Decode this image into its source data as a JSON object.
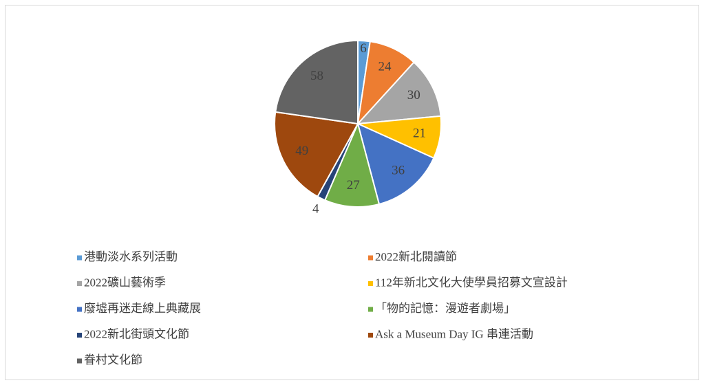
{
  "chart_data": {
    "type": "pie",
    "categories": [
      "港動淡水系列活動",
      "2022新北閱讀節",
      "2022礦山藝術季",
      "112年新北文化大使學員招募文宣設計",
      "廢墟再迷走線上典藏展",
      "「物的記憶：漫遊者劇場」",
      "2022新北街頭文化節",
      "Ask a Museum Day IG 串連活動",
      "眷村文化節"
    ],
    "values": [
      6,
      24,
      30,
      21,
      36,
      27,
      4,
      49,
      58
    ],
    "colors": [
      "#5b9bd5",
      "#ed7d31",
      "#a5a5a5",
      "#ffc000",
      "#4472c4",
      "#70ad47",
      "#264478",
      "#9e480e",
      "#636363"
    ],
    "legend": "bottom"
  }
}
